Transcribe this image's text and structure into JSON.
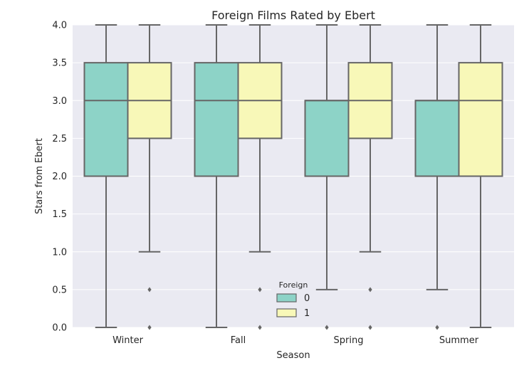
{
  "chart_data": {
    "type": "box",
    "title": "Foreign Films Rated by Ebert",
    "xlabel": "Season",
    "ylabel": "Stars from Ebert",
    "ylim": [
      0,
      4
    ],
    "yticks": [
      "0.0",
      "0.5",
      "1.0",
      "1.5",
      "2.0",
      "2.5",
      "3.0",
      "3.5",
      "4.0"
    ],
    "grid": true,
    "categories": [
      "Winter",
      "Fall",
      "Spring",
      "Summer"
    ],
    "legend": {
      "title": "Foreign",
      "placement": "bottom-center"
    },
    "series": [
      {
        "name": "0",
        "color": "#8dd3c7",
        "boxes": [
          {
            "category": "Winter",
            "whisker_low": 0.0,
            "q1": 2.0,
            "median": 3.0,
            "q3": 3.5,
            "whisker_high": 4.0,
            "outliers": []
          },
          {
            "category": "Fall",
            "whisker_low": 0.0,
            "q1": 2.0,
            "median": 3.0,
            "q3": 3.5,
            "whisker_high": 4.0,
            "outliers": []
          },
          {
            "category": "Spring",
            "whisker_low": 0.5,
            "q1": 2.0,
            "median": 3.0,
            "q3": 3.0,
            "whisker_high": 4.0,
            "outliers": [
              0.0
            ]
          },
          {
            "category": "Summer",
            "whisker_low": 0.5,
            "q1": 2.0,
            "median": 3.0,
            "q3": 3.0,
            "whisker_high": 4.0,
            "outliers": [
              0.0
            ]
          }
        ]
      },
      {
        "name": "1",
        "color": "#f8f8b8",
        "boxes": [
          {
            "category": "Winter",
            "whisker_low": 1.0,
            "q1": 2.5,
            "median": 3.0,
            "q3": 3.5,
            "whisker_high": 4.0,
            "outliers": [
              0.5,
              0.0
            ]
          },
          {
            "category": "Fall",
            "whisker_low": 1.0,
            "q1": 2.5,
            "median": 3.0,
            "q3": 3.5,
            "whisker_high": 4.0,
            "outliers": [
              0.5,
              0.0
            ]
          },
          {
            "category": "Spring",
            "whisker_low": 1.0,
            "q1": 2.5,
            "median": 3.0,
            "q3": 3.5,
            "whisker_high": 4.0,
            "outliers": [
              0.5,
              0.0
            ]
          },
          {
            "category": "Summer",
            "whisker_low": 0.0,
            "q1": 2.0,
            "median": 3.0,
            "q3": 3.5,
            "whisker_high": 4.0,
            "outliers": []
          }
        ]
      }
    ],
    "colors": {
      "background": "#eaeaf2",
      "grid": "#ffffff",
      "lines": "#666666"
    }
  }
}
